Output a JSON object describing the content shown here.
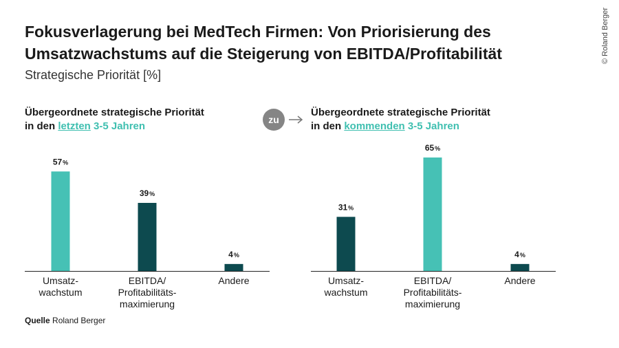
{
  "title": "Fokusverlagerung bei MedTech Firmen: Von Priorisierung des Umsatzwachstums auf die Steigerung von EBITDA/Profitabilität",
  "subtitle": "Strategische Priorität [%]",
  "copyright": "© Roland Berger",
  "connector_label": "zu",
  "source": {
    "label": "Quelle",
    "text": " Roland Berger"
  },
  "panels": [
    {
      "heading_line1": "Übergeordnete strategische Priorität",
      "heading_pre": "in den ",
      "heading_highlight": "letzten",
      "heading_post": " 3-5 Jahren"
    },
    {
      "heading_line1": "Übergeordnete strategische Priorität",
      "heading_pre": "in den ",
      "heading_highlight": "kommenden",
      "heading_post": " 3-5 Jahren"
    }
  ],
  "colors": {
    "teal": "#46c1b5",
    "dark": "#0d4a4f",
    "axis": "#222222",
    "highlight_text": "#3fbfb0"
  },
  "chart_data": [
    {
      "type": "bar",
      "categories": [
        "Umsatz-\nwachstum",
        "EBITDA/\nProfitabilitäts-\nmaximierung",
        "Andere"
      ],
      "values": [
        57,
        39,
        4
      ],
      "value_labels": [
        "57%",
        "39%",
        "4%"
      ],
      "bar_colors": [
        "teal",
        "dark",
        "dark"
      ],
      "ylim": [
        0,
        65
      ]
    },
    {
      "type": "bar",
      "categories": [
        "Umsatz-\nwachstum",
        "EBITDA/\nProfitabilitäts-\nmaximierung",
        "Andere"
      ],
      "values": [
        31,
        65,
        4
      ],
      "value_labels": [
        "31%",
        "65%",
        "4%"
      ],
      "bar_colors": [
        "dark",
        "teal",
        "dark"
      ],
      "ylim": [
        0,
        65
      ]
    }
  ]
}
